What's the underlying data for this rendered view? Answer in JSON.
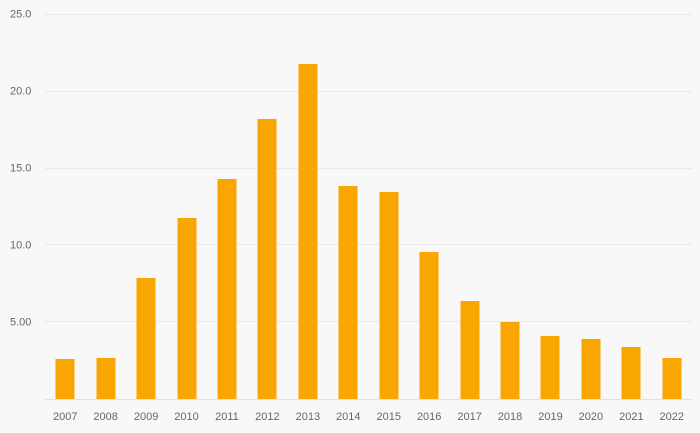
{
  "chart_data": {
    "type": "bar",
    "title": "",
    "xlabel": "",
    "ylabel": "",
    "categories": [
      "2007",
      "2008",
      "2009",
      "2010",
      "2011",
      "2012",
      "2013",
      "2014",
      "2015",
      "2016",
      "2017",
      "2018",
      "2019",
      "2020",
      "2021",
      "2022"
    ],
    "values": [
      2.6,
      2.7,
      7.9,
      11.8,
      14.3,
      18.2,
      21.8,
      13.9,
      13.5,
      9.6,
      6.4,
      5.0,
      4.1,
      3.9,
      3.4,
      2.7
    ],
    "ylim": [
      0,
      25
    ],
    "y_ticks": [
      {
        "value": 25,
        "label": "25.0"
      },
      {
        "value": 20,
        "label": "20.0"
      },
      {
        "value": 15,
        "label": "15.0"
      },
      {
        "value": 10,
        "label": "10.0"
      },
      {
        "value": 5,
        "label": "5.00"
      }
    ],
    "grid": true,
    "legend_position": "none",
    "colors": {
      "bar": "#f9a602",
      "background": "#f8f8f8",
      "gridline": "#e9e9e9",
      "axis_text": "#666666"
    }
  }
}
